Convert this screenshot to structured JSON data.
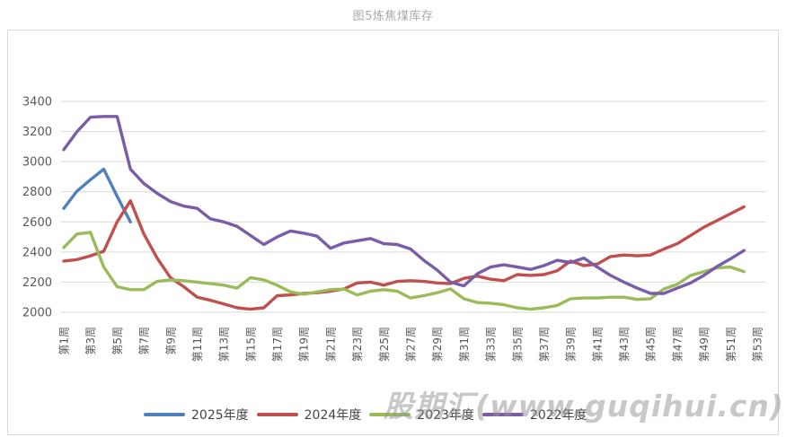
{
  "title": "图5炼焦煤库存",
  "watermark": "股期汇(www.guqihui.cn)",
  "chart_data": {
    "type": "line",
    "title": "图5炼焦煤库存",
    "xlabel": "",
    "ylabel": "",
    "ylim": [
      2000,
      3400
    ],
    "y_ticks": [
      3400,
      3200,
      3000,
      2800,
      2600,
      2400,
      2200,
      2000
    ],
    "x_tick_labels": [
      "第1周",
      "第3周",
      "第5周",
      "第7周",
      "第9周",
      "第11周",
      "第13周",
      "第15周",
      "第17周",
      "第19周",
      "第21周",
      "第23周",
      "第25周",
      "第27周",
      "第29周",
      "第31周",
      "第33周",
      "第35周",
      "第37周",
      "第39周",
      "第41周",
      "第43周",
      "第45周",
      "第47周",
      "第49周",
      "第51周",
      "第53周"
    ],
    "x_categories_total": 53,
    "grid": "horizontal",
    "gridline_color": "#d9d9d9",
    "legend_position": "bottom",
    "axis_text_color": "#595959",
    "series": [
      {
        "name": "2025年度",
        "color": "#4f81bd",
        "values": [
          2690,
          2805,
          2880,
          2950,
          2770,
          2600
        ]
      },
      {
        "name": "2024年度",
        "color": "#c0504d",
        "values": [
          2340,
          2350,
          2375,
          2405,
          2600,
          2740,
          2520,
          2360,
          2230,
          2170,
          2100,
          2080,
          2055,
          2030,
          2020,
          2030,
          2110,
          2115,
          2125,
          2130,
          2140,
          2155,
          2195,
          2200,
          2180,
          2205,
          2210,
          2205,
          2195,
          2190,
          2225,
          2240,
          2220,
          2210,
          2250,
          2245,
          2250,
          2275,
          2340,
          2310,
          2320,
          2370,
          2380,
          2375,
          2380,
          2420,
          2455,
          2510,
          2565,
          2610,
          2655,
          2700
        ]
      },
      {
        "name": "2023年度",
        "color": "#9bbb59",
        "values": [
          2430,
          2520,
          2530,
          2300,
          2170,
          2150,
          2150,
          2205,
          2215,
          2210,
          2200,
          2190,
          2180,
          2160,
          2230,
          2215,
          2180,
          2135,
          2120,
          2135,
          2150,
          2155,
          2115,
          2140,
          2150,
          2140,
          2095,
          2110,
          2130,
          2155,
          2090,
          2065,
          2060,
          2050,
          2030,
          2020,
          2030,
          2045,
          2090,
          2095,
          2095,
          2100,
          2100,
          2085,
          2090,
          2155,
          2185,
          2245,
          2270,
          2295,
          2300,
          2270
        ]
      },
      {
        "name": "2022年度",
        "color": "#7a5da8",
        "values": [
          3080,
          3200,
          3295,
          3300,
          3300,
          2950,
          2855,
          2790,
          2735,
          2705,
          2690,
          2620,
          2600,
          2570,
          2510,
          2450,
          2500,
          2540,
          2525,
          2505,
          2425,
          2460,
          2475,
          2490,
          2455,
          2450,
          2420,
          2345,
          2280,
          2200,
          2175,
          2255,
          2300,
          2315,
          2300,
          2285,
          2310,
          2345,
          2330,
          2360,
          2300,
          2245,
          2200,
          2160,
          2125,
          2125,
          2160,
          2195,
          2245,
          2305,
          2355,
          2410
        ]
      }
    ]
  }
}
